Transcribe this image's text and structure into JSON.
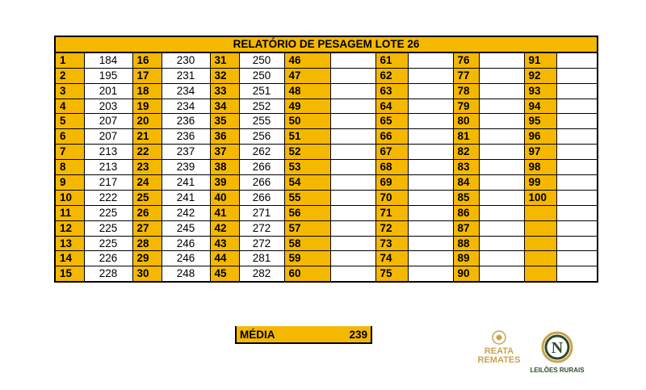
{
  "report": {
    "title": "RELATÓRIO DE PESAGEM LOTE 26",
    "rows": [
      [
        {
          "n": "1",
          "w": "184"
        },
        {
          "n": "16",
          "w": "230"
        },
        {
          "n": "31",
          "w": "250"
        },
        {
          "n": "46",
          "w": ""
        },
        {
          "n": "61",
          "w": ""
        },
        {
          "n": "76",
          "w": ""
        },
        {
          "n": "91",
          "w": ""
        }
      ],
      [
        {
          "n": "2",
          "w": "195"
        },
        {
          "n": "17",
          "w": "231"
        },
        {
          "n": "32",
          "w": "250"
        },
        {
          "n": "47",
          "w": ""
        },
        {
          "n": "62",
          "w": ""
        },
        {
          "n": "77",
          "w": ""
        },
        {
          "n": "92",
          "w": ""
        }
      ],
      [
        {
          "n": "3",
          "w": "201"
        },
        {
          "n": "18",
          "w": "234"
        },
        {
          "n": "33",
          "w": "251"
        },
        {
          "n": "48",
          "w": ""
        },
        {
          "n": "63",
          "w": ""
        },
        {
          "n": "78",
          "w": ""
        },
        {
          "n": "93",
          "w": ""
        }
      ],
      [
        {
          "n": "4",
          "w": "203"
        },
        {
          "n": "19",
          "w": "234"
        },
        {
          "n": "34",
          "w": "252"
        },
        {
          "n": "49",
          "w": ""
        },
        {
          "n": "64",
          "w": ""
        },
        {
          "n": "79",
          "w": ""
        },
        {
          "n": "94",
          "w": ""
        }
      ],
      [
        {
          "n": "5",
          "w": "207"
        },
        {
          "n": "20",
          "w": "236"
        },
        {
          "n": "35",
          "w": "255"
        },
        {
          "n": "50",
          "w": ""
        },
        {
          "n": "65",
          "w": ""
        },
        {
          "n": "80",
          "w": ""
        },
        {
          "n": "95",
          "w": ""
        }
      ],
      [
        {
          "n": "6",
          "w": "207"
        },
        {
          "n": "21",
          "w": "236"
        },
        {
          "n": "36",
          "w": "256"
        },
        {
          "n": "51",
          "w": ""
        },
        {
          "n": "66",
          "w": ""
        },
        {
          "n": "81",
          "w": ""
        },
        {
          "n": "96",
          "w": ""
        }
      ],
      [
        {
          "n": "7",
          "w": "213"
        },
        {
          "n": "22",
          "w": "237"
        },
        {
          "n": "37",
          "w": "262"
        },
        {
          "n": "52",
          "w": ""
        },
        {
          "n": "67",
          "w": ""
        },
        {
          "n": "82",
          "w": ""
        },
        {
          "n": "97",
          "w": ""
        }
      ],
      [
        {
          "n": "8",
          "w": "213"
        },
        {
          "n": "23",
          "w": "239"
        },
        {
          "n": "38",
          "w": "266"
        },
        {
          "n": "53",
          "w": ""
        },
        {
          "n": "68",
          "w": ""
        },
        {
          "n": "83",
          "w": ""
        },
        {
          "n": "98",
          "w": ""
        }
      ],
      [
        {
          "n": "9",
          "w": "217"
        },
        {
          "n": "24",
          "w": "241"
        },
        {
          "n": "39",
          "w": "266"
        },
        {
          "n": "54",
          "w": ""
        },
        {
          "n": "69",
          "w": ""
        },
        {
          "n": "84",
          "w": ""
        },
        {
          "n": "99",
          "w": ""
        }
      ],
      [
        {
          "n": "10",
          "w": "222"
        },
        {
          "n": "25",
          "w": "241"
        },
        {
          "n": "40",
          "w": "266"
        },
        {
          "n": "55",
          "w": ""
        },
        {
          "n": "70",
          "w": ""
        },
        {
          "n": "85",
          "w": ""
        },
        {
          "n": "100",
          "w": ""
        }
      ],
      [
        {
          "n": "11",
          "w": "225"
        },
        {
          "n": "26",
          "w": "242"
        },
        {
          "n": "41",
          "w": "271"
        },
        {
          "n": "56",
          "w": ""
        },
        {
          "n": "71",
          "w": ""
        },
        {
          "n": "86",
          "w": ""
        },
        {
          "n": "",
          "w": ""
        }
      ],
      [
        {
          "n": "12",
          "w": "225"
        },
        {
          "n": "27",
          "w": "245"
        },
        {
          "n": "42",
          "w": "272"
        },
        {
          "n": "57",
          "w": ""
        },
        {
          "n": "72",
          "w": ""
        },
        {
          "n": "87",
          "w": ""
        },
        {
          "n": "",
          "w": ""
        }
      ],
      [
        {
          "n": "13",
          "w": "225"
        },
        {
          "n": "28",
          "w": "246"
        },
        {
          "n": "43",
          "w": "272"
        },
        {
          "n": "58",
          "w": ""
        },
        {
          "n": "73",
          "w": ""
        },
        {
          "n": "88",
          "w": ""
        },
        {
          "n": "",
          "w": ""
        }
      ],
      [
        {
          "n": "14",
          "w": "226"
        },
        {
          "n": "29",
          "w": "246"
        },
        {
          "n": "44",
          "w": "281"
        },
        {
          "n": "59",
          "w": ""
        },
        {
          "n": "74",
          "w": ""
        },
        {
          "n": "89",
          "w": ""
        },
        {
          "n": "",
          "w": ""
        }
      ],
      [
        {
          "n": "15",
          "w": "228"
        },
        {
          "n": "30",
          "w": "248"
        },
        {
          "n": "45",
          "w": "282"
        },
        {
          "n": "60",
          "w": ""
        },
        {
          "n": "75",
          "w": ""
        },
        {
          "n": "90",
          "w": ""
        },
        {
          "n": "",
          "w": ""
        }
      ]
    ]
  },
  "average": {
    "label": "MÉDIA",
    "value": "239"
  },
  "logos": {
    "reata": "REATA REMATES",
    "leiloes": "LEILÕES RURAIS"
  },
  "colors": {
    "header_fill": "#F5B800",
    "gold": "#C9A34E",
    "green": "#2E4A2C"
  }
}
